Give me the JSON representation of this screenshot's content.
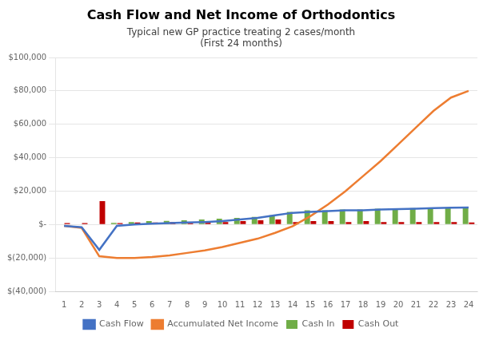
{
  "chart_data": {
    "type": "bar",
    "title": "Cash Flow and Net Income of Orthodontics",
    "subtitle": [
      "Typical new GP practice treating 2 cases/month",
      "(First 24 months)"
    ],
    "categories": [
      1,
      2,
      3,
      4,
      5,
      6,
      7,
      8,
      9,
      10,
      11,
      12,
      13,
      14,
      15,
      16,
      17,
      18,
      19,
      20,
      21,
      22,
      23,
      24
    ],
    "series": [
      {
        "name": "Cash In",
        "type": "bar",
        "color": "#70ad47",
        "values": [
          0,
          0,
          200,
          1000,
          1500,
          2000,
          2200,
          2500,
          3000,
          3500,
          4000,
          4500,
          5500,
          7500,
          8500,
          8500,
          9000,
          9000,
          9500,
          9500,
          9800,
          10000,
          10200,
          10500
        ]
      },
      {
        "name": "Cash Out",
        "type": "bar",
        "color": "#c00000",
        "values": [
          800,
          800,
          14000,
          800,
          1200,
          1200,
          1500,
          1200,
          1500,
          1500,
          2000,
          2500,
          3000,
          1500,
          2000,
          2000,
          1500,
          2000,
          1500,
          1500,
          1500,
          1500,
          1500,
          1200
        ]
      },
      {
        "name": "Cash Flow",
        "type": "line",
        "color": "#4472c4",
        "values": [
          -800,
          -1600,
          -15200,
          -800,
          0,
          500,
          800,
          1200,
          1500,
          2000,
          3000,
          4000,
          5500,
          7000,
          7500,
          8000,
          8500,
          8500,
          9000,
          9200,
          9500,
          9800,
          10000,
          10200
        ]
      },
      {
        "name": "Accumulated Net Income",
        "type": "line",
        "color": "#ed7d31",
        "values": [
          -800,
          -2000,
          -19000,
          -20000,
          -20000,
          -19500,
          -18500,
          -17000,
          -15500,
          -13500,
          -11000,
          -8500,
          -5000,
          -1000,
          5000,
          12000,
          20000,
          29000,
          38000,
          48000,
          58000,
          68000,
          76000,
          80000
        ]
      }
    ],
    "ylim": [
      -40000,
      100000
    ],
    "yticks": [
      {
        "value": -40000,
        "label": "$(40,000)"
      },
      {
        "value": -20000,
        "label": "$(20,000)"
      },
      {
        "value": 0,
        "label": "$-"
      },
      {
        "value": 20000,
        "label": "$20,000"
      },
      {
        "value": 40000,
        "label": "$40,000"
      },
      {
        "value": 60000,
        "label": "$60,000"
      },
      {
        "value": 80000,
        "label": "$80,000"
      },
      {
        "value": 100000,
        "label": "$100,000"
      }
    ],
    "grid": true,
    "legend": "bottom"
  }
}
